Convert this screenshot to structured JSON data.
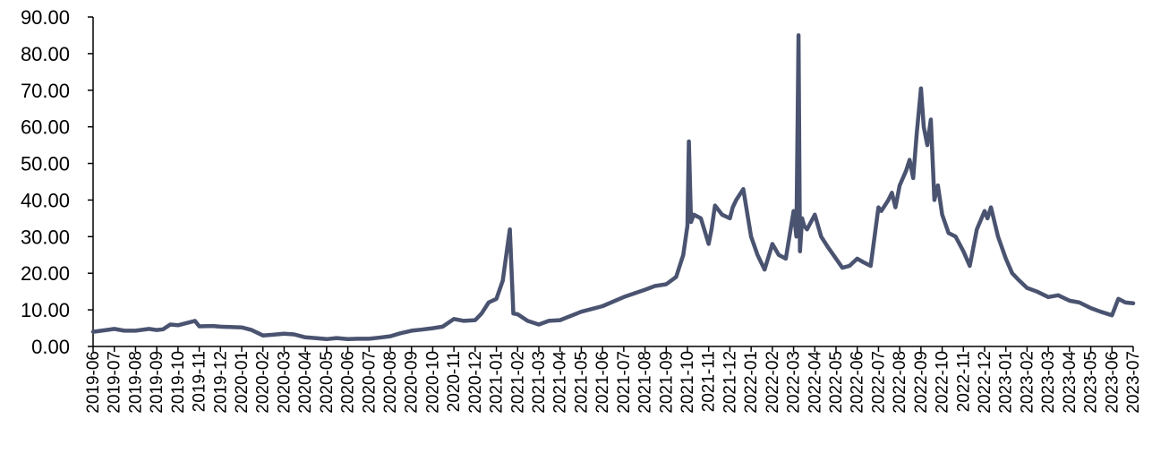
{
  "chart_data": {
    "type": "line",
    "title": "",
    "xlabel": "",
    "ylabel": "",
    "ylim": [
      0,
      90
    ],
    "grid": false,
    "legend": "none",
    "line_color": "#4A5370",
    "y_ticks": [
      "0.00",
      "10.00",
      "20.00",
      "30.00",
      "40.00",
      "50.00",
      "60.00",
      "70.00",
      "80.00",
      "90.00"
    ],
    "x_ticks": [
      "2019-06",
      "2019-07",
      "2019-08",
      "2019-09",
      "2019-10",
      "2019-11",
      "2019-12",
      "2020-01",
      "2020-02",
      "2020-03",
      "2020-04",
      "2020-05",
      "2020-06",
      "2020-07",
      "2020-08",
      "2020-09",
      "2020-10",
      "2020-11",
      "2020-12",
      "2021-01",
      "2021-02",
      "2021-03",
      "2021-04",
      "2021-05",
      "2021-06",
      "2021-07",
      "2021-08",
      "2021-09",
      "2021-10",
      "2021-11",
      "2021-12",
      "2022-01",
      "2022-02",
      "2022-03",
      "2022-04",
      "2022-05",
      "2022-06",
      "2022-07",
      "2022-08",
      "2022-09",
      "2022-10",
      "2022-11",
      "2022-12",
      "2023-01",
      "2023-02",
      "2023-03",
      "2023-04",
      "2023-05",
      "2023-06",
      "2023-07"
    ],
    "series": [
      {
        "x": [
          "2019-06",
          "2019-06-20",
          "2019-07",
          "2019-07-15",
          "2019-08",
          "2019-08-20",
          "2019-09",
          "2019-09-10",
          "2019-09-20",
          "2019-10",
          "2019-10-25",
          "2019-11",
          "2019-11-20",
          "2019-12",
          "2020-01",
          "2020-01-15",
          "2020-02",
          "2020-02-15",
          "2020-03",
          "2020-03-15",
          "2020-04",
          "2020-04-15",
          "2020-05",
          "2020-05-15",
          "2020-06",
          "2020-06-15",
          "2020-07",
          "2020-07-15",
          "2020-08",
          "2020-08-15",
          "2020-09",
          "2020-09-15",
          "2020-10",
          "2020-10-15",
          "2020-11",
          "2020-11-15",
          "2020-12",
          "2020-12-10",
          "2020-12-20",
          "2021-01",
          "2021-01-10",
          "2021-01-15",
          "2021-01-20",
          "2021-01-25",
          "2021-02",
          "2021-02-15",
          "2021-03",
          "2021-03-15",
          "2021-04",
          "2021-05",
          "2021-06",
          "2021-07",
          "2021-08",
          "2021-08-15",
          "2021-09",
          "2021-09-15",
          "2021-09-25",
          "2021-10",
          "2021-10-03",
          "2021-10-06",
          "2021-10-10",
          "2021-10-20",
          "2021-11",
          "2021-11-05",
          "2021-11-10",
          "2021-11-20",
          "2021-12",
          "2021-12-05",
          "2021-12-10",
          "2021-12-20",
          "2022-01",
          "2022-01-10",
          "2022-01-20",
          "2022-02",
          "2022-02-10",
          "2022-02-20",
          "2022-03",
          "2022-03-05",
          "2022-03-08",
          "2022-03-10",
          "2022-03-13",
          "2022-03-16",
          "2022-03-20",
          "2022-04",
          "2022-04-10",
          "2022-04-20",
          "2022-05",
          "2022-05-10",
          "2022-05-20",
          "2022-06",
          "2022-06-10",
          "2022-06-20",
          "2022-07",
          "2022-07-05",
          "2022-07-15",
          "2022-07-20",
          "2022-07-25",
          "2022-08",
          "2022-08-10",
          "2022-08-15",
          "2022-08-20",
          "2022-08-25",
          "2022-09",
          "2022-09-05",
          "2022-09-10",
          "2022-09-15",
          "2022-09-20",
          "2022-09-25",
          "2022-10",
          "2022-10-10",
          "2022-10-20",
          "2022-11",
          "2022-11-10",
          "2022-11-20",
          "2022-12",
          "2022-12-05",
          "2022-12-10",
          "2022-12-20",
          "2023-01",
          "2023-01-10",
          "2023-01-20",
          "2023-02",
          "2023-02-15",
          "2023-03",
          "2023-03-15",
          "2023-04",
          "2023-04-15",
          "2023-05",
          "2023-05-15",
          "2023-06",
          "2023-06-10",
          "2023-06-20",
          "2023-07"
        ],
        "y": [
          4.0,
          4.5,
          4.8,
          4.3,
          4.3,
          4.8,
          4.5,
          4.7,
          6.0,
          5.8,
          7.0,
          5.5,
          5.6,
          5.4,
          5.2,
          4.5,
          3.0,
          3.2,
          3.5,
          3.3,
          2.5,
          2.3,
          2.0,
          2.3,
          2.0,
          2.1,
          2.1,
          2.4,
          2.8,
          3.6,
          4.3,
          4.6,
          5.0,
          5.4,
          7.5,
          7.0,
          7.2,
          9.0,
          12.0,
          13.0,
          18.0,
          25.0,
          32.0,
          9.0,
          8.8,
          7.0,
          6.0,
          7.0,
          7.2,
          9.5,
          11.0,
          13.5,
          15.5,
          16.5,
          17.0,
          19.0,
          25.0,
          33.0,
          56.0,
          34.0,
          36.0,
          35.0,
          28.0,
          32.0,
          38.5,
          36.0,
          35.0,
          38.0,
          40.0,
          43.0,
          30.0,
          25.0,
          21.0,
          28.0,
          25.0,
          24.0,
          37.0,
          30.0,
          85.0,
          26.0,
          35.0,
          33.0,
          32.0,
          36.0,
          30.0,
          27.0,
          24.0,
          21.5,
          22.0,
          24.0,
          23.0,
          22.0,
          38.0,
          37.0,
          40.0,
          42.0,
          38.0,
          44.0,
          48.0,
          51.0,
          46.0,
          58.0,
          70.5,
          60.0,
          55.0,
          62.0,
          40.0,
          44.0,
          36.0,
          31.0,
          30.0,
          26.0,
          22.0,
          32.0,
          37.0,
          35.0,
          38.0,
          30.0,
          24.0,
          20.0,
          18.0,
          16.0,
          15.0,
          13.5,
          14.0,
          12.5,
          12.0,
          10.5,
          9.5,
          8.5,
          13.0,
          12.0,
          11.8
        ]
      }
    ]
  }
}
